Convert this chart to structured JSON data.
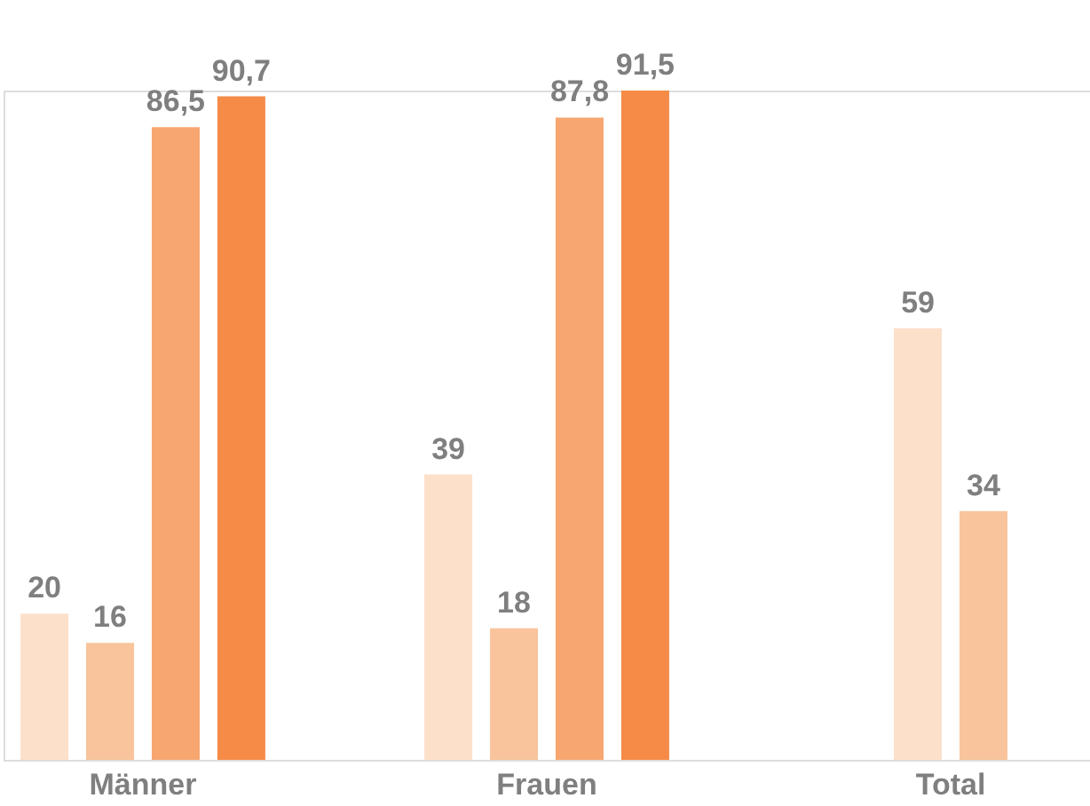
{
  "chart_data": {
    "type": "bar",
    "categories": [
      "Männer",
      "Frauen",
      "Total"
    ],
    "series": [
      {
        "color": "#fde0c9",
        "values": [
          20,
          39,
          59
        ],
        "value_labels": [
          "20",
          "39",
          "59"
        ]
      },
      {
        "color": "#f9c49b",
        "values": [
          16,
          18,
          34
        ],
        "value_labels": [
          "16",
          "18",
          "34"
        ]
      },
      {
        "color": "#f7a66f",
        "values": [
          86.5,
          87.8,
          null
        ],
        "value_labels": [
          "86,5",
          "87,8",
          null
        ]
      },
      {
        "color": "#f58b47",
        "values": [
          90.7,
          91.5,
          null
        ],
        "value_labels": [
          "90,7",
          "91,5",
          null
        ]
      }
    ],
    "grid": false
  }
}
